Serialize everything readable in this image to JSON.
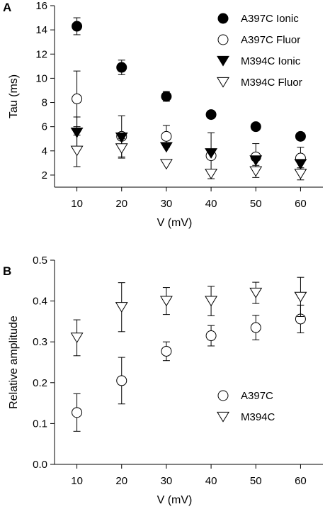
{
  "chart_data": [
    {
      "type": "scatter",
      "panel": "A",
      "xlabel": "V (mV)",
      "ylabel": "Tau (ms)",
      "xlim": [
        5,
        65
      ],
      "ylim": [
        1,
        16
      ],
      "x_ticks": [
        10,
        20,
        30,
        40,
        50,
        60
      ],
      "y_ticks": [
        2,
        4,
        6,
        8,
        10,
        12,
        14,
        16
      ],
      "legend_position": "top-right",
      "series": [
        {
          "name": "A397C Ionic",
          "marker": "circle-filled",
          "x": [
            10,
            20,
            30,
            40,
            50,
            60
          ],
          "y": [
            14.3,
            10.9,
            8.5,
            7.0,
            6.0,
            5.2
          ],
          "err": [
            0.7,
            0.6,
            0.4,
            0,
            0,
            0
          ]
        },
        {
          "name": "A397C Fluor",
          "marker": "circle-open",
          "x": [
            10,
            20,
            30,
            40,
            50,
            60
          ],
          "y": [
            8.3,
            5.2,
            5.2,
            3.6,
            3.5,
            3.4
          ],
          "err": [
            2.3,
            1.7,
            0.9,
            1.9,
            1.1,
            0.9
          ]
        },
        {
          "name": "M394C Ionic",
          "marker": "triangle-down-filled",
          "x": [
            10,
            20,
            30,
            40,
            50,
            60
          ],
          "y": [
            5.5,
            5.1,
            4.3,
            3.8,
            3.2,
            2.9
          ],
          "err": [
            1.3,
            0,
            0,
            0,
            0,
            0
          ]
        },
        {
          "name": "M394C Fluor",
          "marker": "triangle-down-open",
          "x": [
            10,
            20,
            30,
            40,
            50,
            60
          ],
          "y": [
            4.0,
            4.2,
            2.9,
            2.1,
            2.3,
            2.1
          ],
          "err": [
            1.3,
            0.8,
            0,
            0,
            0.5,
            0.5
          ]
        }
      ]
    },
    {
      "type": "scatter",
      "panel": "B",
      "xlabel": "V (mV)",
      "ylabel": "Relative amplitude",
      "xlim": [
        5,
        65
      ],
      "ylim": [
        0,
        0.5
      ],
      "x_ticks": [
        10,
        20,
        30,
        40,
        50,
        60
      ],
      "y_ticks": [
        "0.0",
        "0.1",
        "0.2",
        "0.3",
        "0.4",
        "0.5"
      ],
      "legend_position": "bottom-right",
      "series": [
        {
          "name": "A397C",
          "marker": "circle-open",
          "x": [
            10,
            20,
            30,
            40,
            50,
            60
          ],
          "y": [
            0.127,
            0.205,
            0.277,
            0.315,
            0.335,
            0.356
          ],
          "err": [
            0.046,
            0.057,
            0.023,
            0.025,
            0.03,
            0.034
          ]
        },
        {
          "name": "M394C",
          "marker": "triangle-down-open",
          "x": [
            10,
            20,
            30,
            40,
            50,
            60
          ],
          "y": [
            0.31,
            0.385,
            0.4,
            0.4,
            0.42,
            0.41
          ],
          "err": [
            0.044,
            0.06,
            0.033,
            0.036,
            0.026,
            0.048
          ]
        }
      ]
    }
  ]
}
